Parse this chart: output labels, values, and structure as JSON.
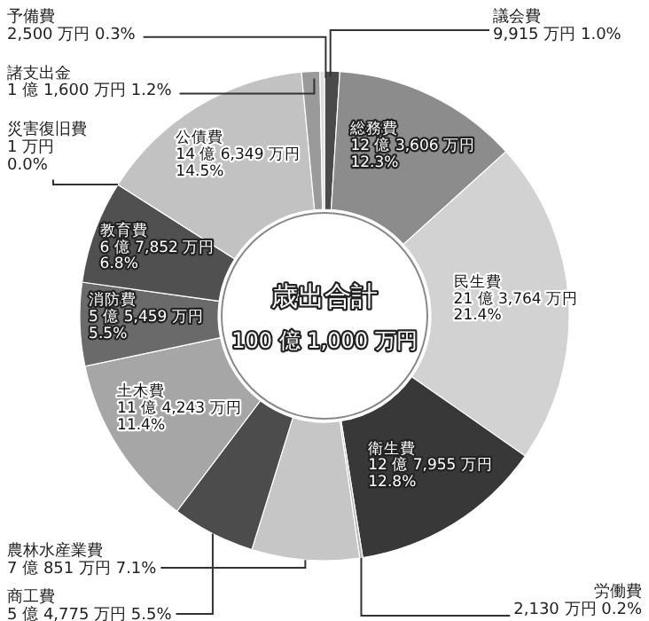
{
  "chart_data": {
    "type": "donut",
    "title": "歳出合計",
    "subtitle": "100 億 1,000 万円",
    "categories": [
      "議会費",
      "総務費",
      "民生費",
      "衛生費",
      "労働費",
      "農林水産業費",
      "商工費",
      "土木費",
      "消防費",
      "教育費",
      "災害復旧費",
      "公債費",
      "諸支出金",
      "予備費"
    ],
    "values": [
      1.0,
      12.3,
      21.4,
      12.8,
      0.2,
      7.1,
      5.5,
      11.4,
      5.5,
      6.8,
      0.0,
      14.5,
      1.2,
      0.3
    ],
    "value_labels": [
      "9,915 万円 1.0%",
      "12 億 3,606 万円\n12.3%",
      "21 億 3,764 万円\n21.4%",
      "12 億 7,955 万円\n12.8%",
      "2,130 万円 0.2%",
      "7 億 851 万円 7.1%",
      "5 億 4,775 万円 5.5%",
      "11 億 4,243 万円\n11.4%",
      "5 億 5,459 万円\n5.5%",
      "6 億 7,852 万円\n6.8%",
      "1 万円\n0.0%",
      "14 億 6,349 万円\n14.5%",
      "1 億 1,600 万円 1.2%",
      "2,500 万円 0.3%"
    ],
    "colors": [
      "#4a4a4a",
      "#8c8c8c",
      "#d2d2d2",
      "#383838",
      "#b4b4b4",
      "#c6c6c6",
      "#4c4c4c",
      "#a6a6a6",
      "#6a6a6a",
      "#505050",
      "#7a7a7a",
      "#c2c2c2",
      "#9a9a9a",
      "#dcdcdc"
    ]
  }
}
